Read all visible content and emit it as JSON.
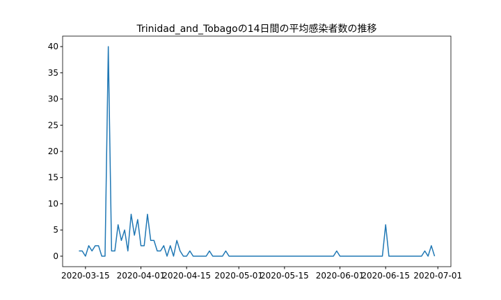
{
  "chart_data": {
    "type": "line",
    "title": "Trinidad_and_Tobagoの14日間の平均感染者数の推移",
    "x": [
      "2020-03-13",
      "2020-03-14",
      "2020-03-15",
      "2020-03-16",
      "2020-03-17",
      "2020-03-18",
      "2020-03-19",
      "2020-03-20",
      "2020-03-21",
      "2020-03-22",
      "2020-03-23",
      "2020-03-24",
      "2020-03-25",
      "2020-03-26",
      "2020-03-27",
      "2020-03-28",
      "2020-03-29",
      "2020-03-30",
      "2020-03-31",
      "2020-04-01",
      "2020-04-02",
      "2020-04-03",
      "2020-04-04",
      "2020-04-05",
      "2020-04-06",
      "2020-04-07",
      "2020-04-08",
      "2020-04-09",
      "2020-04-10",
      "2020-04-11",
      "2020-04-12",
      "2020-04-13",
      "2020-04-14",
      "2020-04-15",
      "2020-04-16",
      "2020-04-17",
      "2020-04-18",
      "2020-04-19",
      "2020-04-20",
      "2020-04-21",
      "2020-04-22",
      "2020-04-23",
      "2020-04-24",
      "2020-04-25",
      "2020-04-26",
      "2020-04-27",
      "2020-04-28",
      "2020-04-29",
      "2020-04-30",
      "2020-05-01",
      "2020-05-02",
      "2020-05-03",
      "2020-05-04",
      "2020-05-05",
      "2020-05-06",
      "2020-05-07",
      "2020-05-08",
      "2020-05-09",
      "2020-05-10",
      "2020-05-11",
      "2020-05-12",
      "2020-05-13",
      "2020-05-14",
      "2020-05-15",
      "2020-05-16",
      "2020-05-17",
      "2020-05-18",
      "2020-05-19",
      "2020-05-20",
      "2020-05-21",
      "2020-05-22",
      "2020-05-23",
      "2020-05-24",
      "2020-05-25",
      "2020-05-26",
      "2020-05-27",
      "2020-05-28",
      "2020-05-29",
      "2020-05-30",
      "2020-05-31",
      "2020-06-01",
      "2020-06-02",
      "2020-06-03",
      "2020-06-04",
      "2020-06-05",
      "2020-06-06",
      "2020-06-07",
      "2020-06-08",
      "2020-06-09",
      "2020-06-10",
      "2020-06-11",
      "2020-06-12",
      "2020-06-13",
      "2020-06-14",
      "2020-06-15",
      "2020-06-16",
      "2020-06-17",
      "2020-06-18",
      "2020-06-19",
      "2020-06-20",
      "2020-06-21",
      "2020-06-22",
      "2020-06-23",
      "2020-06-24",
      "2020-06-25",
      "2020-06-26",
      "2020-06-27",
      "2020-06-28",
      "2020-06-29",
      "2020-06-30"
    ],
    "series": [
      {
        "color": "#1f77b4",
        "values": [
          1,
          1,
          0,
          2,
          1,
          2,
          2,
          0,
          0,
          40,
          1,
          1,
          6,
          3,
          5,
          1,
          8,
          4,
          7,
          2,
          2,
          8,
          3,
          3,
          1,
          1,
          2,
          0,
          2,
          0,
          3,
          1,
          0,
          0,
          1,
          0,
          0,
          0,
          0,
          0,
          1,
          0,
          0,
          0,
          0,
          1,
          0,
          0,
          0,
          0,
          0,
          0,
          0,
          0,
          0,
          0,
          0,
          0,
          0,
          0,
          0,
          0,
          0,
          0,
          0,
          0,
          0,
          0,
          0,
          0,
          0,
          0,
          0,
          0,
          0,
          0,
          0,
          0,
          0,
          1,
          0,
          0,
          0,
          0,
          0,
          0,
          0,
          0,
          0,
          0,
          0,
          0,
          0,
          0,
          6,
          0,
          0,
          0,
          0,
          0,
          0,
          0,
          0,
          0,
          0,
          0,
          1,
          0,
          2,
          0
        ]
      }
    ],
    "xlim": [
      "2020-03-08",
      "2020-07-05"
    ],
    "xticks": [
      "2020-03-15",
      "2020-04-01",
      "2020-04-15",
      "2020-05-01",
      "2020-05-15",
      "2020-06-01",
      "2020-06-15",
      "2020-07-01"
    ],
    "ylim": [
      -2,
      42
    ],
    "yticks": [
      0,
      5,
      10,
      15,
      20,
      25,
      30,
      35,
      40
    ],
    "grid": false
  }
}
